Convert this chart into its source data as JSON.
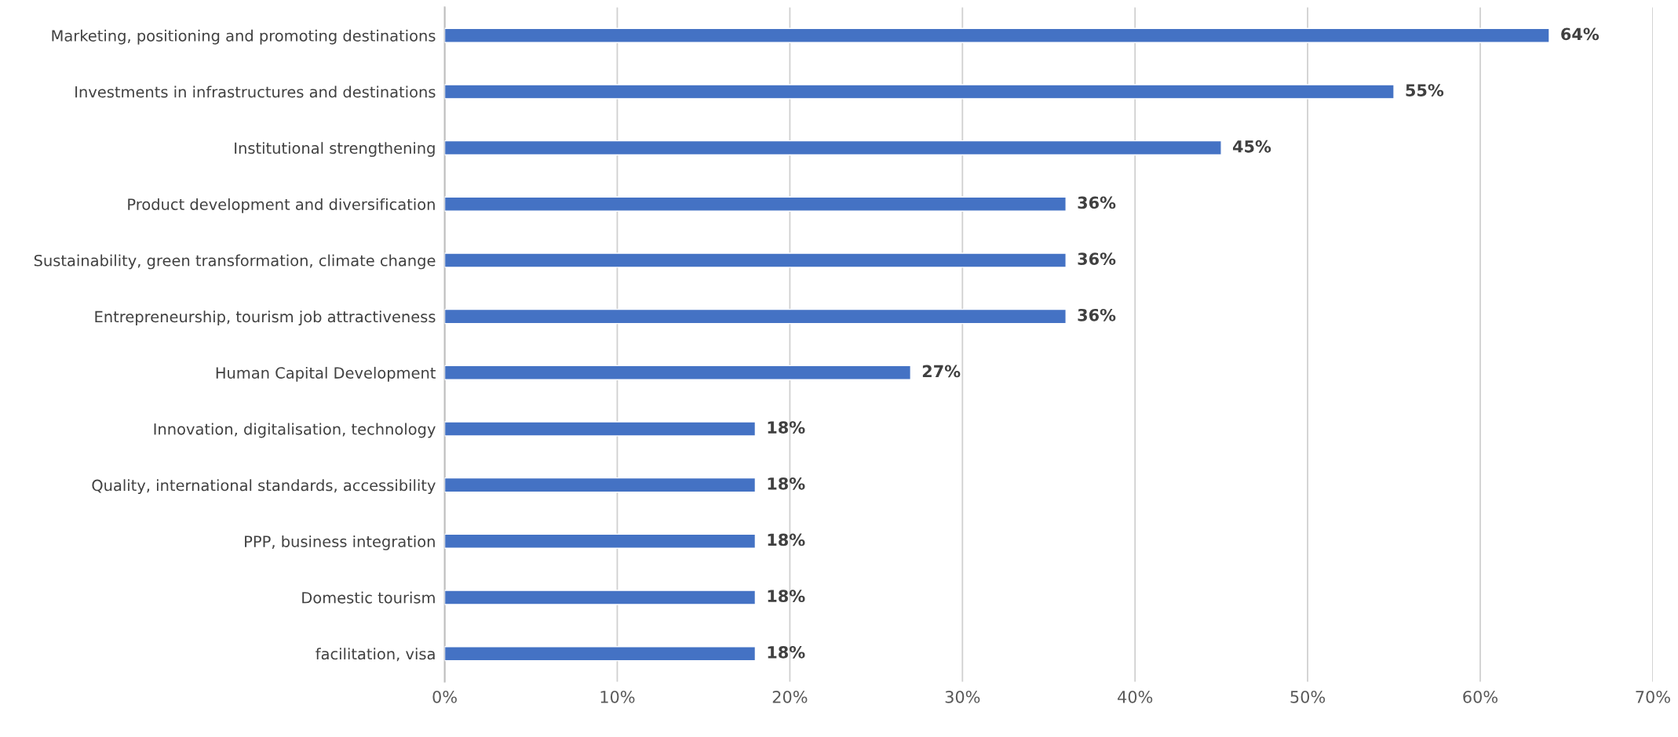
{
  "chart_data": {
    "type": "bar",
    "orientation": "horizontal",
    "categories": [
      "Marketing, positioning and promoting destinations",
      "Investments in infrastructures and destinations",
      "Institutional strengthening",
      "Product development and diversification",
      "Sustainability, green transformation, climate change",
      "Entrepreneurship, tourism job attractiveness",
      "Human Capital Development",
      "Innovation, digitalisation, technology",
      "Quality, international standards, accessibility",
      "PPP, business integration",
      "Domestic tourism",
      "facilitation, visa"
    ],
    "values": [
      64,
      55,
      45,
      36,
      36,
      36,
      27,
      18,
      18,
      18,
      18,
      18
    ],
    "value_labels": [
      "64%",
      "55%",
      "45%",
      "36%",
      "36%",
      "36%",
      "27%",
      "18%",
      "18%",
      "18%",
      "18%",
      "18%"
    ],
    "color": "#4472c4",
    "xlim": [
      0,
      70
    ],
    "xticks": [
      {
        "value": 0,
        "label": "0%"
      },
      {
        "value": 10,
        "label": "10%"
      },
      {
        "value": 20,
        "label": "20%"
      },
      {
        "value": 30,
        "label": "30%"
      },
      {
        "value": 40,
        "label": "40%"
      },
      {
        "value": 50,
        "label": "50%"
      },
      {
        "value": 60,
        "label": "60%"
      },
      {
        "value": 70,
        "label": "70%"
      }
    ],
    "grid": "x"
  }
}
